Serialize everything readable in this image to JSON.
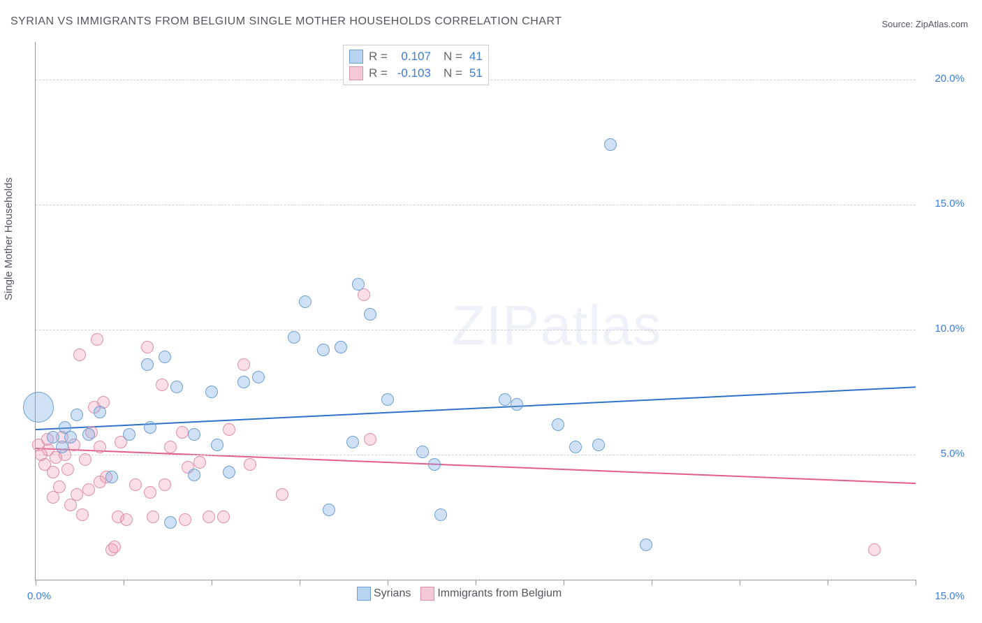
{
  "title": "SYRIAN VS IMMIGRANTS FROM BELGIUM SINGLE MOTHER HOUSEHOLDS CORRELATION CHART",
  "source_label": "Source: ZipAtlas.com",
  "y_axis_label": "Single Mother Households",
  "watermark_bold": "ZIP",
  "watermark_thin": "atlas",
  "chart": {
    "type": "scatter",
    "xlim": [
      0,
      15
    ],
    "ylim": [
      0,
      21.5
    ],
    "x_ticks": [
      0,
      1.5,
      3.0,
      4.5,
      6.0,
      7.5,
      9.0,
      10.5,
      12.0,
      13.5,
      15.0
    ],
    "y_gridlines": [
      5.0,
      10.0,
      15.0,
      20.0
    ],
    "y_tick_labels": [
      "5.0%",
      "10.0%",
      "15.0%",
      "20.0%"
    ],
    "x_origin_label": "0.0%",
    "x_max_label": "15.0%",
    "background_color": "#ffffff",
    "grid_color": "#d0d0d0",
    "axis_color": "#999999",
    "tick_label_color": "#3b7dd8",
    "tick_label_fontsize": 15,
    "marker_radius": 9,
    "marker_border_width": 1.5,
    "large_marker_radius": 22,
    "series": [
      {
        "id": "syrians",
        "label": "Syrians",
        "fill_color": "rgba(120,170,230,0.35)",
        "stroke_color": "#6d9fd1",
        "legend_fill": "#b7d3f0",
        "legend_border": "#6d9fd1",
        "R": "0.107",
        "N": "41",
        "trend": {
          "y_at_x0": 6.0,
          "y_at_xmax": 7.7,
          "color": "#2d72c9",
          "width": 2
        },
        "points": [
          {
            "x": 0.05,
            "y": 6.9,
            "r": 22
          },
          {
            "x": 0.3,
            "y": 5.7
          },
          {
            "x": 0.45,
            "y": 5.3
          },
          {
            "x": 0.5,
            "y": 6.1
          },
          {
            "x": 0.6,
            "y": 5.7
          },
          {
            "x": 0.7,
            "y": 6.6
          },
          {
            "x": 0.9,
            "y": 5.8
          },
          {
            "x": 1.1,
            "y": 6.7
          },
          {
            "x": 1.3,
            "y": 4.1
          },
          {
            "x": 1.6,
            "y": 5.8
          },
          {
            "x": 1.9,
            "y": 8.6
          },
          {
            "x": 1.95,
            "y": 6.1
          },
          {
            "x": 2.2,
            "y": 8.9
          },
          {
            "x": 2.3,
            "y": 2.3
          },
          {
            "x": 2.4,
            "y": 7.7
          },
          {
            "x": 2.7,
            "y": 5.8
          },
          {
            "x": 2.7,
            "y": 4.2
          },
          {
            "x": 3.0,
            "y": 7.5
          },
          {
            "x": 3.1,
            "y": 5.4
          },
          {
            "x": 3.3,
            "y": 4.3
          },
          {
            "x": 3.55,
            "y": 7.9
          },
          {
            "x": 3.8,
            "y": 8.1
          },
          {
            "x": 4.4,
            "y": 9.7
          },
          {
            "x": 4.6,
            "y": 11.1
          },
          {
            "x": 4.9,
            "y": 9.2
          },
          {
            "x": 5.0,
            "y": 2.8
          },
          {
            "x": 5.2,
            "y": 9.3
          },
          {
            "x": 5.4,
            "y": 5.5
          },
          {
            "x": 5.5,
            "y": 11.8
          },
          {
            "x": 5.7,
            "y": 10.6
          },
          {
            "x": 6.0,
            "y": 7.2
          },
          {
            "x": 6.6,
            "y": 5.1
          },
          {
            "x": 6.8,
            "y": 4.6
          },
          {
            "x": 6.9,
            "y": 2.6
          },
          {
            "x": 8.0,
            "y": 7.2
          },
          {
            "x": 8.2,
            "y": 7.0
          },
          {
            "x": 8.9,
            "y": 6.2
          },
          {
            "x": 9.2,
            "y": 5.3
          },
          {
            "x": 9.6,
            "y": 5.4
          },
          {
            "x": 9.8,
            "y": 17.4
          },
          {
            "x": 10.4,
            "y": 1.4
          }
        ]
      },
      {
        "id": "belgium",
        "label": "Immigrants from Belgium",
        "fill_color": "rgba(240,150,180,0.30)",
        "stroke_color": "#de8fa8",
        "legend_fill": "#f3c9d6",
        "legend_border": "#de8fa8",
        "R": "-0.103",
        "N": "51",
        "trend": {
          "y_at_x0": 5.25,
          "y_at_xmax": 3.85,
          "color": "#e35d87",
          "width": 2
        },
        "points": [
          {
            "x": 0.05,
            "y": 5.4
          },
          {
            "x": 0.1,
            "y": 5.0
          },
          {
            "x": 0.15,
            "y": 4.6
          },
          {
            "x": 0.2,
            "y": 5.6
          },
          {
            "x": 0.22,
            "y": 5.2
          },
          {
            "x": 0.3,
            "y": 4.3
          },
          {
            "x": 0.3,
            "y": 3.3
          },
          {
            "x": 0.35,
            "y": 4.9
          },
          {
            "x": 0.4,
            "y": 3.7
          },
          {
            "x": 0.45,
            "y": 5.7
          },
          {
            "x": 0.5,
            "y": 5.0
          },
          {
            "x": 0.55,
            "y": 4.4
          },
          {
            "x": 0.6,
            "y": 3.0
          },
          {
            "x": 0.65,
            "y": 5.4
          },
          {
            "x": 0.7,
            "y": 3.4
          },
          {
            "x": 0.75,
            "y": 9.0
          },
          {
            "x": 0.8,
            "y": 2.6
          },
          {
            "x": 0.85,
            "y": 4.8
          },
          {
            "x": 0.9,
            "y": 3.6
          },
          {
            "x": 0.95,
            "y": 5.9
          },
          {
            "x": 1.0,
            "y": 6.9
          },
          {
            "x": 1.05,
            "y": 9.6
          },
          {
            "x": 1.1,
            "y": 5.3
          },
          {
            "x": 1.1,
            "y": 3.9
          },
          {
            "x": 1.15,
            "y": 7.1
          },
          {
            "x": 1.2,
            "y": 4.1
          },
          {
            "x": 1.3,
            "y": 1.2
          },
          {
            "x": 1.35,
            "y": 1.3
          },
          {
            "x": 1.4,
            "y": 2.5
          },
          {
            "x": 1.45,
            "y": 5.5
          },
          {
            "x": 1.55,
            "y": 2.4
          },
          {
            "x": 1.7,
            "y": 3.8
          },
          {
            "x": 1.9,
            "y": 9.3
          },
          {
            "x": 1.95,
            "y": 3.5
          },
          {
            "x": 2.0,
            "y": 2.5
          },
          {
            "x": 2.15,
            "y": 7.8
          },
          {
            "x": 2.2,
            "y": 3.8
          },
          {
            "x": 2.3,
            "y": 5.3
          },
          {
            "x": 2.5,
            "y": 5.9
          },
          {
            "x": 2.55,
            "y": 2.4
          },
          {
            "x": 2.6,
            "y": 4.5
          },
          {
            "x": 2.8,
            "y": 4.7
          },
          {
            "x": 2.95,
            "y": 2.5
          },
          {
            "x": 3.2,
            "y": 2.5
          },
          {
            "x": 3.3,
            "y": 6.0
          },
          {
            "x": 3.55,
            "y": 8.6
          },
          {
            "x": 3.65,
            "y": 4.6
          },
          {
            "x": 4.2,
            "y": 3.4
          },
          {
            "x": 5.6,
            "y": 11.4
          },
          {
            "x": 5.7,
            "y": 5.6
          },
          {
            "x": 14.3,
            "y": 1.2
          }
        ]
      }
    ]
  },
  "stats_box": {
    "r_label": "R  =",
    "n_label": "N  ="
  }
}
